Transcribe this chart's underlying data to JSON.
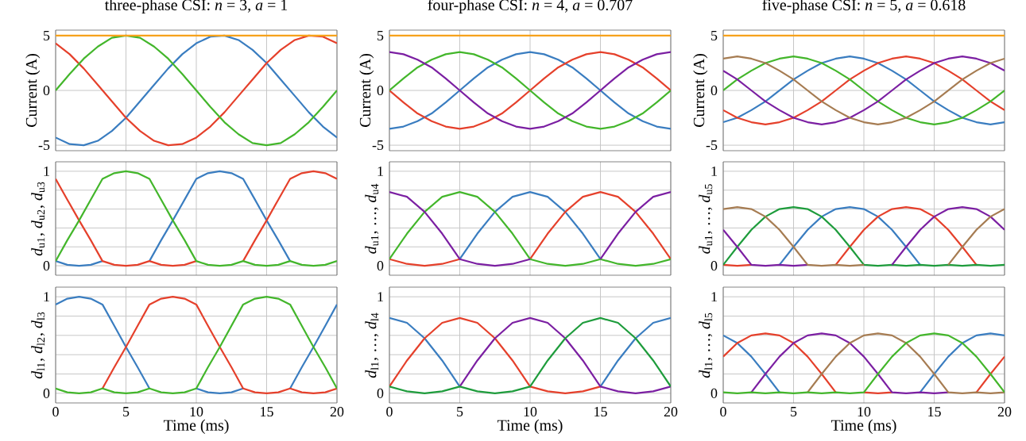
{
  "chart_data": [
    {
      "type": "line",
      "title": "three-phase CSI: *n* = 3, *a* = 1",
      "ylabel": "Current (A)",
      "x": [
        0,
        1,
        2,
        3,
        4,
        5,
        6,
        7,
        8,
        9,
        10,
        11,
        12,
        13,
        14,
        15,
        16,
        17,
        18,
        19,
        20
      ],
      "xlim": [
        0,
        20
      ],
      "xticks": [
        0,
        5,
        10,
        15,
        20
      ],
      "ylim": [
        -5.5,
        5.5
      ],
      "yticks": [
        -5,
        0,
        5
      ],
      "grid": true,
      "tick_labels": "y",
      "series": [
        {
          "color": "#3a7dc0",
          "values": [
            -4.3,
            -4.9,
            -5.0,
            -4.6,
            -3.7,
            -2.5,
            -1.0,
            0.5,
            2.0,
            3.3,
            4.3,
            4.9,
            5.0,
            4.6,
            3.7,
            2.5,
            1.0,
            -0.5,
            -2.0,
            -3.3,
            -4.3
          ]
        },
        {
          "color": "#e5402b",
          "values": [
            4.3,
            3.3,
            2.0,
            0.5,
            -1.0,
            -2.5,
            -3.7,
            -4.6,
            -5.0,
            -4.9,
            -4.3,
            -3.3,
            -2.0,
            -0.5,
            1.0,
            2.5,
            3.7,
            4.6,
            5.0,
            4.9,
            4.3
          ]
        },
        {
          "color": "#43b62b",
          "values": [
            0,
            1.5,
            2.9,
            4.0,
            4.8,
            5.0,
            4.8,
            4.0,
            2.9,
            1.5,
            0,
            -1.5,
            -2.9,
            -4.0,
            -4.8,
            -5.0,
            -4.8,
            -4.0,
            -2.9,
            -1.5,
            0
          ]
        },
        {
          "color": "#f7a21b",
          "values": [
            5,
            5,
            5,
            5,
            5,
            5,
            5,
            5,
            5,
            5,
            5,
            5,
            5,
            5,
            5,
            5,
            5,
            5,
            5,
            5,
            5
          ]
        }
      ]
    },
    {
      "type": "line",
      "title": "four-phase CSI: *n* = 4, *a* = 0.707",
      "ylabel": "Current (A)",
      "x": [
        0,
        1,
        2,
        3,
        4,
        5,
        6,
        7,
        8,
        9,
        10,
        11,
        12,
        13,
        14,
        15,
        16,
        17,
        18,
        19,
        20
      ],
      "xlim": [
        0,
        20
      ],
      "xticks": [
        0,
        5,
        10,
        15,
        20
      ],
      "ylim": [
        -5.5,
        5.5
      ],
      "yticks": [
        -5,
        0,
        5
      ],
      "grid": true,
      "tick_labels": "y",
      "series": [
        {
          "color": "#3a7dc0",
          "values": [
            -3.5,
            -3.3,
            -2.8,
            -2.1,
            -1.1,
            0,
            1.1,
            2.1,
            2.8,
            3.3,
            3.5,
            3.3,
            2.8,
            2.1,
            1.1,
            0,
            -1.1,
            -2.1,
            -2.8,
            -3.3,
            -3.5
          ]
        },
        {
          "color": "#e5402b",
          "values": [
            0,
            -1.1,
            -2.1,
            -2.8,
            -3.3,
            -3.5,
            -3.3,
            -2.8,
            -2.1,
            -1.1,
            0,
            1.1,
            2.1,
            2.8,
            3.3,
            3.5,
            3.3,
            2.8,
            2.1,
            1.1,
            0
          ]
        },
        {
          "color": "#43b62b",
          "values": [
            0,
            1.1,
            2.1,
            2.8,
            3.3,
            3.5,
            3.3,
            2.8,
            2.1,
            1.1,
            0,
            -1.1,
            -2.1,
            -2.8,
            -3.3,
            -3.5,
            -3.3,
            -2.8,
            -2.1,
            -1.1,
            0
          ]
        },
        {
          "color": "#7b1fa2",
          "values": [
            3.5,
            3.3,
            2.8,
            2.1,
            1.1,
            0,
            -1.1,
            -2.1,
            -2.8,
            -3.3,
            -3.5,
            -3.3,
            -2.8,
            -2.1,
            -1.1,
            0,
            1.1,
            2.1,
            2.8,
            3.3,
            3.5
          ]
        },
        {
          "color": "#f7a21b",
          "values": [
            5,
            5,
            5,
            5,
            5,
            5,
            5,
            5,
            5,
            5,
            5,
            5,
            5,
            5,
            5,
            5,
            5,
            5,
            5,
            5,
            5
          ]
        }
      ]
    },
    {
      "type": "line",
      "title": "five-phase CSI: *n* = 5, *a* = 0.618",
      "ylabel": "Current (A)",
      "x": [
        0,
        1,
        2,
        3,
        4,
        5,
        6,
        7,
        8,
        9,
        10,
        11,
        12,
        13,
        14,
        15,
        16,
        17,
        18,
        19,
        20
      ],
      "xlim": [
        0,
        20
      ],
      "xticks": [
        0,
        5,
        10,
        15,
        20
      ],
      "ylim": [
        -5.5,
        5.5
      ],
      "yticks": [
        -5,
        0,
        5
      ],
      "grid": true,
      "tick_labels": "y",
      "series": [
        {
          "color": "#3a7dc0",
          "values": [
            -2.9,
            -2.5,
            -1.8,
            -1.0,
            0,
            1.0,
            1.8,
            2.5,
            2.9,
            3.1,
            2.9,
            2.5,
            1.8,
            1.0,
            0,
            -1.0,
            -1.8,
            -2.5,
            -2.9,
            -3.1,
            -2.9
          ]
        },
        {
          "color": "#e5402b",
          "values": [
            -1.8,
            -2.5,
            -2.9,
            -3.1,
            -2.9,
            -2.5,
            -1.8,
            -1.0,
            0,
            1.0,
            1.8,
            2.5,
            2.9,
            3.1,
            2.9,
            2.5,
            1.8,
            1.0,
            0,
            -1.0,
            -1.8
          ]
        },
        {
          "color": "#43b62b",
          "values": [
            0,
            1.0,
            1.8,
            2.5,
            2.9,
            3.1,
            2.9,
            2.5,
            1.8,
            1.0,
            0,
            -1.0,
            -1.8,
            -2.5,
            -2.9,
            -3.1,
            -2.9,
            -2.5,
            -1.8,
            -1.0,
            0
          ]
        },
        {
          "color": "#7b1fa2",
          "values": [
            1.8,
            1.0,
            0,
            -1.0,
            -1.8,
            -2.5,
            -2.9,
            -3.1,
            -2.9,
            -2.5,
            -1.8,
            -1.0,
            0,
            1.0,
            1.8,
            2.5,
            2.9,
            3.1,
            2.9,
            2.5,
            1.8
          ]
        },
        {
          "color": "#a67c52",
          "values": [
            2.9,
            3.1,
            2.9,
            2.5,
            1.8,
            1.0,
            0,
            -1.0,
            -1.8,
            -2.5,
            -2.9,
            -3.1,
            -2.9,
            -2.5,
            -1.8,
            -1.0,
            0,
            1.0,
            1.8,
            2.5,
            2.9
          ]
        },
        {
          "color": "#f7a21b",
          "values": [
            5,
            5,
            5,
            5,
            5,
            5,
            5,
            5,
            5,
            5,
            5,
            5,
            5,
            5,
            5,
            5,
            5,
            5,
            5,
            5,
            5
          ]
        }
      ]
    },
    {
      "type": "line",
      "ylabel": "*d*$_{u1}$, *d*$_{u2}$, *d*$_{u3}$",
      "x": [
        0,
        0.83,
        1.67,
        2.5,
        3.33,
        4.17,
        5,
        5.83,
        6.67,
        7.5,
        8.33,
        9.17,
        10,
        10.83,
        11.67,
        12.5,
        13.33,
        14.17,
        15,
        15.83,
        16.67,
        17.5,
        18.33,
        19.17,
        20
      ],
      "xlim": [
        0,
        20
      ],
      "xticks": [
        0,
        5,
        10,
        15,
        20
      ],
      "ylim": [
        -0.1,
        1.1
      ],
      "yticks": [
        0,
        {
          "value": 0.2,
          "label": null
        },
        {
          "value": 0.4,
          "label": null
        },
        {
          "value": 0.6,
          "label": null
        },
        {
          "value": 0.8,
          "label": null
        },
        1
      ],
      "grid": true,
      "tick_labels": "y",
      "series": [
        {
          "color": "#3a7dc0",
          "values": [
            0.05,
            0.01,
            0,
            0.01,
            0.05,
            null,
            null,
            null,
            0.05,
            0.27,
            0.48,
            0.7,
            0.92,
            0.98,
            1.0,
            0.98,
            0.92,
            0.7,
            0.48,
            0.27,
            0.05,
            null,
            null,
            null,
            null
          ]
        },
        {
          "color": "#e5402b",
          "values": [
            0.92,
            0.7,
            0.48,
            0.27,
            0.05,
            0.01,
            0,
            0.01,
            0.05,
            0.01,
            0,
            0.01,
            0.05,
            null,
            null,
            null,
            0.05,
            0.27,
            0.48,
            0.7,
            0.92,
            0.98,
            1.0,
            0.98,
            0.92
          ]
        },
        {
          "color": "#43b62b",
          "values": [
            0.05,
            0.27,
            0.48,
            0.7,
            0.92,
            0.98,
            1.0,
            0.98,
            0.92,
            0.7,
            0.48,
            0.27,
            0.05,
            0.01,
            0,
            0.01,
            0.05,
            0.01,
            0,
            0.01,
            0.05,
            0.01,
            0,
            0.01,
            0.05
          ]
        }
      ]
    },
    {
      "type": "line",
      "ylabel": "*d*$_{u1}$, …, *d*$_{u4}$",
      "x": [
        0,
        1.25,
        2.5,
        3.75,
        5,
        6.25,
        7.5,
        8.75,
        10,
        11.25,
        12.5,
        13.75,
        15,
        16.25,
        17.5,
        18.75,
        20
      ],
      "xlim": [
        0,
        20
      ],
      "xticks": [
        0,
        5,
        10,
        15,
        20
      ],
      "ylim": [
        -0.1,
        1.1
      ],
      "yticks": [
        0,
        {
          "value": 0.2,
          "label": null
        },
        {
          "value": 0.4,
          "label": null
        },
        {
          "value": 0.6,
          "label": null
        },
        {
          "value": 0.8,
          "label": null
        },
        1
      ],
      "grid": true,
      "tick_labels": "y",
      "series": [
        {
          "color": "#3a7dc0",
          "values": [
            null,
            null,
            null,
            null,
            0.07,
            0.34,
            0.57,
            0.73,
            0.78,
            0.73,
            0.57,
            0.34,
            0.07,
            null,
            null,
            null,
            null
          ]
        },
        {
          "color": "#e5402b",
          "values": [
            0.07,
            0.02,
            0,
            0.02,
            0.07,
            null,
            null,
            null,
            0.07,
            0.34,
            0.57,
            0.73,
            0.78,
            0.73,
            0.57,
            0.34,
            0.07
          ]
        },
        {
          "color": "#43b62b",
          "values": [
            0.07,
            0.34,
            0.57,
            0.73,
            0.78,
            0.73,
            0.57,
            0.34,
            0.07,
            0.02,
            0,
            0.02,
            0.07,
            0.02,
            0,
            0.02,
            0.07
          ]
        },
        {
          "color": "#7b1fa2",
          "values": [
            0.78,
            0.73,
            0.57,
            0.34,
            0.07,
            0.02,
            0,
            0.02,
            0.07,
            null,
            null,
            null,
            0.07,
            0.34,
            0.57,
            0.73,
            0.78
          ]
        }
      ]
    },
    {
      "type": "line",
      "ylabel": "*d*$_{u1}$, …, *d*$_{u5}$",
      "x": [
        0,
        1,
        2,
        3,
        4,
        5,
        6,
        7,
        8,
        9,
        10,
        11,
        12,
        13,
        14,
        15,
        16,
        17,
        18,
        19,
        20
      ],
      "xlim": [
        0,
        20
      ],
      "xticks": [
        0,
        5,
        10,
        15,
        20
      ],
      "ylim": [
        -0.1,
        1.1
      ],
      "yticks": [
        0,
        {
          "value": 0.2,
          "label": null
        },
        {
          "value": 0.4,
          "label": null
        },
        {
          "value": 0.6,
          "label": null
        },
        {
          "value": 0.8,
          "label": null
        },
        1
      ],
      "grid": true,
      "tick_labels": "y",
      "series": [
        {
          "color": "#3a7dc0",
          "values": [
            null,
            null,
            null,
            null,
            0.01,
            0.2,
            0.38,
            0.52,
            0.6,
            0.62,
            0.6,
            0.52,
            0.38,
            0.2,
            0.01,
            null,
            null,
            null,
            null,
            null,
            null
          ]
        },
        {
          "color": "#e5402b",
          "values": [
            0.01,
            0,
            0.01,
            null,
            null,
            null,
            null,
            null,
            0.01,
            0.2,
            0.38,
            0.52,
            0.6,
            0.62,
            0.6,
            0.52,
            0.38,
            0.2,
            0.01,
            null,
            null
          ]
        },
        {
          "color": "#1e9c3c",
          "values": [
            0.01,
            0.2,
            0.38,
            0.52,
            0.6,
            0.62,
            0.6,
            0.52,
            0.38,
            0.2,
            0.01,
            0,
            0.01,
            0,
            0.01,
            0,
            0.01,
            0,
            0.01,
            0,
            0.01
          ]
        },
        {
          "color": "#7b1fa2",
          "values": [
            0.38,
            0.2,
            0.01,
            0,
            0.01,
            0,
            0.01,
            null,
            null,
            null,
            null,
            null,
            0.01,
            0.2,
            0.38,
            0.52,
            0.6,
            0.62,
            0.6,
            0.52,
            0.38
          ]
        },
        {
          "color": "#a67c52",
          "values": [
            0.6,
            0.62,
            0.6,
            0.52,
            0.38,
            0.2,
            0.01,
            0,
            0.01,
            0,
            0.01,
            null,
            null,
            null,
            null,
            null,
            0.01,
            0.2,
            0.38,
            0.52,
            0.6
          ]
        }
      ]
    },
    {
      "type": "line",
      "ylabel": "*d*$_{l1}$, *d*$_{l2}$, *d*$_{l3}$",
      "xlabel": "Time (ms)",
      "x": [
        0,
        0.83,
        1.67,
        2.5,
        3.33,
        4.17,
        5,
        5.83,
        6.67,
        7.5,
        8.33,
        9.17,
        10,
        10.83,
        11.67,
        12.5,
        13.33,
        14.17,
        15,
        15.83,
        16.67,
        17.5,
        18.33,
        19.17,
        20
      ],
      "xlim": [
        0,
        20
      ],
      "xticks": [
        0,
        5,
        10,
        15,
        20
      ],
      "ylim": [
        -0.1,
        1.1
      ],
      "yticks": [
        0,
        {
          "value": 0.2,
          "label": null
        },
        {
          "value": 0.4,
          "label": null
        },
        {
          "value": 0.6,
          "label": null
        },
        {
          "value": 0.8,
          "label": null
        },
        1
      ],
      "grid": true,
      "series": [
        {
          "color": "#3a7dc0",
          "values": [
            0.92,
            0.98,
            1.0,
            0.98,
            0.92,
            0.7,
            0.48,
            0.27,
            0.05,
            null,
            null,
            null,
            0.05,
            0.01,
            0,
            0.01,
            0.05,
            null,
            null,
            null,
            0.05,
            0.27,
            0.48,
            0.7,
            0.92
          ]
        },
        {
          "color": "#e5402b",
          "values": [
            null,
            null,
            null,
            null,
            0.05,
            0.27,
            0.48,
            0.7,
            0.92,
            0.98,
            1.0,
            0.98,
            0.92,
            0.7,
            0.48,
            0.27,
            0.05,
            0.01,
            0,
            0.01,
            0.05,
            0.01,
            0,
            0.01,
            0.05
          ]
        },
        {
          "color": "#43b62b",
          "values": [
            0.05,
            0.01,
            0,
            0.01,
            0.05,
            0.01,
            0,
            0.01,
            0.05,
            0.01,
            0,
            0.01,
            0.05,
            0.27,
            0.48,
            0.7,
            0.92,
            0.98,
            1.0,
            0.98,
            0.92,
            0.7,
            0.48,
            0.27,
            0.05
          ]
        }
      ]
    },
    {
      "type": "line",
      "ylabel": "*d*$_{l1}$, …, *d*$_{l4}$",
      "xlabel": "Time (ms)",
      "x": [
        0,
        1.25,
        2.5,
        3.75,
        5,
        6.25,
        7.5,
        8.75,
        10,
        11.25,
        12.5,
        13.75,
        15,
        16.25,
        17.5,
        18.75,
        20
      ],
      "xlim": [
        0,
        20
      ],
      "xticks": [
        0,
        5,
        10,
        15,
        20
      ],
      "ylim": [
        -0.1,
        1.1
      ],
      "yticks": [
        0,
        {
          "value": 0.2,
          "label": null
        },
        {
          "value": 0.4,
          "label": null
        },
        {
          "value": 0.6,
          "label": null
        },
        {
          "value": 0.8,
          "label": null
        },
        1
      ],
      "grid": true,
      "series": [
        {
          "color": "#3a7dc0",
          "values": [
            0.78,
            0.73,
            0.57,
            0.34,
            0.07,
            null,
            null,
            null,
            null,
            null,
            null,
            null,
            0.07,
            0.34,
            0.57,
            0.73,
            0.78
          ]
        },
        {
          "color": "#e5402b",
          "values": [
            0.07,
            0.34,
            0.57,
            0.73,
            0.78,
            0.73,
            0.57,
            0.34,
            0.07,
            0.02,
            0,
            0.02,
            0.07,
            null,
            null,
            null,
            null
          ]
        },
        {
          "color": "#7b1fa2",
          "values": [
            null,
            null,
            null,
            null,
            0.07,
            0.34,
            0.57,
            0.73,
            0.78,
            0.73,
            0.57,
            0.34,
            0.07,
            0.02,
            0,
            0.02,
            0.07
          ]
        },
        {
          "color": "#1e9c3c",
          "values": [
            0.07,
            0.02,
            0,
            0.02,
            0.07,
            0.02,
            0,
            0.02,
            0.07,
            0.34,
            0.57,
            0.73,
            0.78,
            0.73,
            0.57,
            0.34,
            0.07
          ]
        }
      ]
    },
    {
      "type": "line",
      "ylabel": "*d*$_{l1}$, …, *d*$_{l5}$",
      "xlabel": "Time (ms)",
      "x": [
        0,
        1,
        2,
        3,
        4,
        5,
        6,
        7,
        8,
        9,
        10,
        11,
        12,
        13,
        14,
        15,
        16,
        17,
        18,
        19,
        20
      ],
      "xlim": [
        0,
        20
      ],
      "xticks": [
        0,
        5,
        10,
        15,
        20
      ],
      "ylim": [
        -0.1,
        1.1
      ],
      "yticks": [
        0,
        {
          "value": 0.2,
          "label": null
        },
        {
          "value": 0.4,
          "label": null
        },
        {
          "value": 0.6,
          "label": null
        },
        {
          "value": 0.8,
          "label": null
        },
        1
      ],
      "grid": true,
      "series": [
        {
          "color": "#3a7dc0",
          "values": [
            0.6,
            0.52,
            0.38,
            0.2,
            0.01,
            null,
            null,
            null,
            null,
            null,
            null,
            null,
            null,
            null,
            0.01,
            0.2,
            0.38,
            0.52,
            0.6,
            0.62,
            0.6
          ]
        },
        {
          "color": "#e5402b",
          "values": [
            0.38,
            0.52,
            0.6,
            0.62,
            0.6,
            0.52,
            0.38,
            0.2,
            0.01,
            null,
            0.01,
            0,
            0.01,
            null,
            null,
            null,
            null,
            null,
            0.01,
            0.2,
            0.38
          ]
        },
        {
          "color": "#7b1fa2",
          "values": [
            null,
            null,
            0.01,
            0.2,
            0.38,
            0.52,
            0.6,
            0.62,
            0.6,
            0.52,
            0.38,
            0.2,
            0.01,
            0,
            0.01,
            0,
            0.01,
            null,
            null,
            null,
            null
          ]
        },
        {
          "color": "#a67c52",
          "values": [
            null,
            null,
            null,
            null,
            null,
            null,
            0.01,
            0.2,
            0.38,
            0.52,
            0.6,
            0.62,
            0.6,
            0.52,
            0.38,
            0.2,
            0.01,
            0,
            0.01,
            0,
            0.01
          ]
        },
        {
          "color": "#43b62b",
          "values": [
            0.01,
            0,
            0.01,
            0,
            0.01,
            0,
            0.01,
            0,
            0.01,
            0,
            0.01,
            0.2,
            0.38,
            0.52,
            0.6,
            0.62,
            0.6,
            0.52,
            0.38,
            0.2,
            0.01
          ]
        }
      ]
    }
  ]
}
